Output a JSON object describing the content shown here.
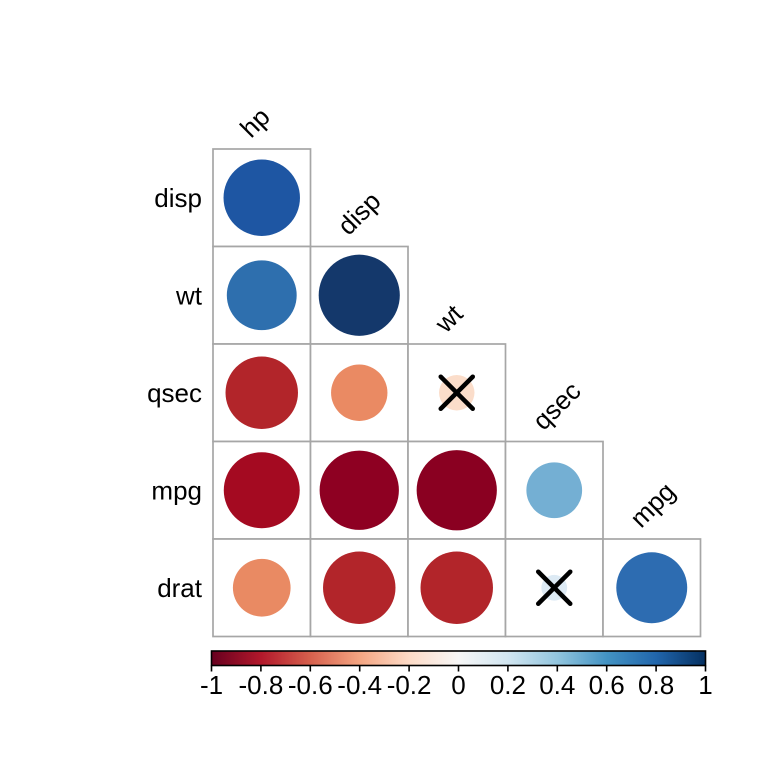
{
  "figure": {
    "background": "#ffffff"
  },
  "chart_data": {
    "type": "correlation-matrix",
    "layout": "lower-triangle",
    "col_labels": [
      "hp",
      "disp",
      "wt",
      "qsec",
      "mpg"
    ],
    "row_labels": [
      "disp",
      "wt",
      "qsec",
      "mpg",
      "drat"
    ],
    "cells": [
      {
        "row": "disp",
        "col": "hp",
        "r": 0.79,
        "color": "#1e56a3",
        "x_mark": false
      },
      {
        "row": "wt",
        "col": "hp",
        "r": 0.66,
        "color": "#2e6fae",
        "x_mark": false
      },
      {
        "row": "wt",
        "col": "disp",
        "r": 0.89,
        "color": "#14386b",
        "x_mark": false
      },
      {
        "row": "qsec",
        "col": "hp",
        "r": -0.71,
        "color": "#b2252a",
        "x_mark": false
      },
      {
        "row": "qsec",
        "col": "disp",
        "r": -0.43,
        "color": "#ea8a63",
        "x_mark": false
      },
      {
        "row": "qsec",
        "col": "wt",
        "r": -0.17,
        "color": "#fbddca",
        "x_mark": true
      },
      {
        "row": "mpg",
        "col": "hp",
        "r": -0.78,
        "color": "#a40a21",
        "x_mark": false
      },
      {
        "row": "mpg",
        "col": "disp",
        "r": -0.85,
        "color": "#8e0022",
        "x_mark": false
      },
      {
        "row": "mpg",
        "col": "wt",
        "r": -0.87,
        "color": "#8a0021",
        "x_mark": false
      },
      {
        "row": "mpg",
        "col": "qsec",
        "r": 0.42,
        "color": "#74afd3",
        "x_mark": false
      },
      {
        "row": "drat",
        "col": "hp",
        "r": -0.45,
        "color": "#e98a63",
        "x_mark": false
      },
      {
        "row": "drat",
        "col": "disp",
        "r": -0.71,
        "color": "#b2252a",
        "x_mark": false
      },
      {
        "row": "drat",
        "col": "wt",
        "r": -0.71,
        "color": "#b2252a",
        "x_mark": false
      },
      {
        "row": "drat",
        "col": "qsec",
        "r": 0.09,
        "color": "#ddeaf4",
        "x_mark": true
      },
      {
        "row": "drat",
        "col": "mpg",
        "r": 0.68,
        "color": "#2d6cb1",
        "x_mark": false
      }
    ],
    "colorbar": {
      "min": -1,
      "max": 1,
      "tick_labels": [
        "-1",
        "-0.8",
        "-0.6",
        "-0.4",
        "-0.2",
        "0",
        "0.2",
        "0.4",
        "0.6",
        "0.8",
        "1"
      ],
      "gradient": [
        "#67001f",
        "#b2182b",
        "#d6604d",
        "#f4a582",
        "#fddbc7",
        "#f7f7f7",
        "#d1e5f0",
        "#92c5de",
        "#4393c3",
        "#2166ac",
        "#053061"
      ]
    },
    "styles": {
      "grid_color": "#a6a6a6",
      "text_color": "#000000",
      "x_mark_color": "#000000"
    }
  }
}
